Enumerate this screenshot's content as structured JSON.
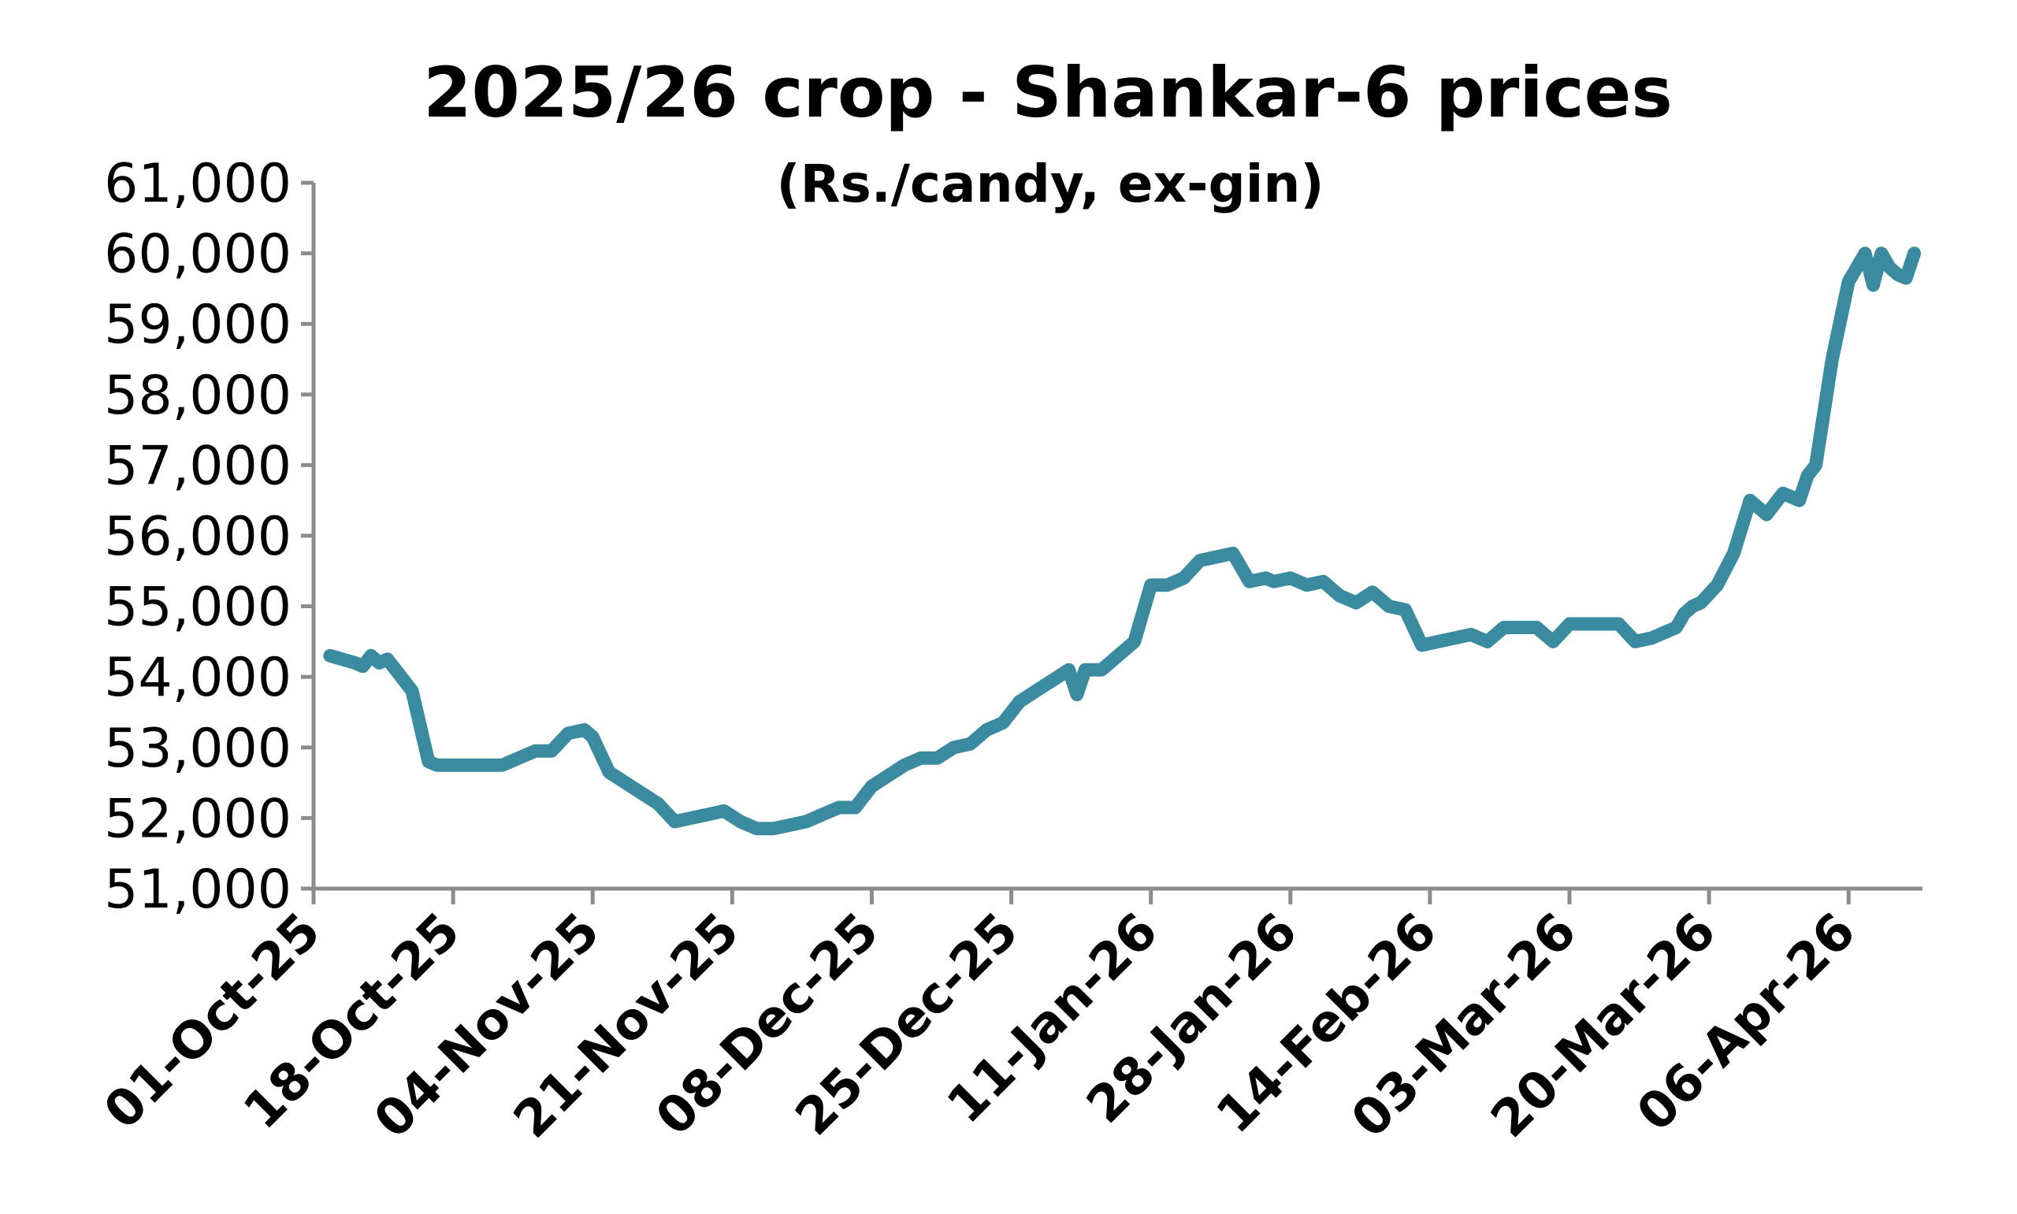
{
  "chart_data": {
    "type": "line",
    "title": "2025/26 crop - Shankar-6 prices",
    "subtitle": "(Rs./candy, ex-gin)",
    "xlabel": "",
    "ylabel": "",
    "ylim": [
      51000,
      61000
    ],
    "y_ticks": [
      "51,000",
      "52,000",
      "53,000",
      "54,000",
      "55,000",
      "56,000",
      "57,000",
      "58,000",
      "59,000",
      "60,000",
      "61,000"
    ],
    "x_ticks": [
      "01-Oct-25",
      "18-Oct-25",
      "04-Nov-25",
      "21-Nov-25",
      "08-Dec-25",
      "25-Dec-25",
      "11-Jan-26",
      "28-Jan-26",
      "14-Feb-26",
      "03-Mar-26",
      "20-Mar-26",
      "06-Apr-26"
    ],
    "x_range": [
      "2025-10-01",
      "2026-04-15"
    ],
    "grid": false,
    "legend": "none",
    "colors": {
      "line": "#3a8ba0",
      "axis": "#8c8c8c"
    },
    "series": [
      {
        "x": [
          "2025-10-03",
          "2025-10-06",
          "2025-10-07",
          "2025-10-08",
          "2025-10-09",
          "2025-10-10",
          "2025-10-11",
          "2025-10-13",
          "2025-10-14",
          "2025-10-15",
          "2025-10-16",
          "2025-10-18",
          "2025-10-20",
          "2025-10-22",
          "2025-10-24",
          "2025-10-26",
          "2025-10-28",
          "2025-10-30",
          "2025-11-01",
          "2025-11-03",
          "2025-11-04",
          "2025-11-05",
          "2025-11-06",
          "2025-11-08",
          "2025-11-10",
          "2025-11-12",
          "2025-11-14",
          "2025-11-16",
          "2025-11-18",
          "2025-11-20",
          "2025-11-22",
          "2025-11-24",
          "2025-11-26",
          "2025-11-28",
          "2025-11-30",
          "2025-12-02",
          "2025-12-04",
          "2025-12-06",
          "2025-12-08",
          "2025-12-10",
          "2025-12-12",
          "2025-12-14",
          "2025-12-16",
          "2025-12-18",
          "2025-12-20",
          "2025-12-22",
          "2025-12-24",
          "2025-12-26",
          "2025-12-28",
          "2025-12-30",
          "2026-01-01",
          "2026-01-02",
          "2026-01-03",
          "2026-01-05",
          "2026-01-07",
          "2026-01-09",
          "2026-01-11",
          "2026-01-13",
          "2026-01-15",
          "2026-01-17",
          "2026-01-19",
          "2026-01-21",
          "2026-01-23",
          "2026-01-25",
          "2026-01-26",
          "2026-01-28",
          "2026-01-30",
          "2026-02-01",
          "2026-02-03",
          "2026-02-05",
          "2026-02-07",
          "2026-02-09",
          "2026-02-11",
          "2026-02-13",
          "2026-02-15",
          "2026-02-17",
          "2026-02-19",
          "2026-02-21",
          "2026-02-23",
          "2026-02-25",
          "2026-02-27",
          "2026-03-01",
          "2026-03-03",
          "2026-03-05",
          "2026-03-07",
          "2026-03-09",
          "2026-03-11",
          "2026-03-13",
          "2026-03-15",
          "2026-03-16",
          "2026-03-17",
          "2026-03-18",
          "2026-03-19",
          "2026-03-21",
          "2026-03-23",
          "2026-03-25",
          "2026-03-27",
          "2026-03-29",
          "2026-03-31",
          "2026-04-01",
          "2026-04-02",
          "2026-04-04",
          "2026-04-06",
          "2026-04-07",
          "2026-04-08",
          "2026-04-09",
          "2026-04-10",
          "2026-04-11",
          "2026-04-12",
          "2026-04-13",
          "2026-04-14"
        ],
        "values": [
          54300,
          54200,
          54150,
          54300,
          54200,
          54250,
          54100,
          53800,
          53300,
          52800,
          52750,
          52750,
          52750,
          52750,
          52750,
          52850,
          52950,
          52950,
          53200,
          53250,
          53150,
          52900,
          52650,
          52500,
          52350,
          52200,
          51950,
          52000,
          52050,
          52100,
          51950,
          51850,
          51850,
          51900,
          51950,
          52050,
          52150,
          52150,
          52450,
          52600,
          52750,
          52850,
          52850,
          53000,
          53050,
          53250,
          53350,
          53650,
          53800,
          53950,
          54100,
          53750,
          54100,
          54100,
          54300,
          54500,
          55300,
          55300,
          55400,
          55650,
          55700,
          55750,
          55350,
          55400,
          55350,
          55400,
          55300,
          55350,
          55150,
          55050,
          55200,
          55000,
          54950,
          54450,
          54500,
          54550,
          54600,
          54500,
          54700,
          54700,
          54700,
          54500,
          54750,
          54750,
          54750,
          54750,
          54500,
          54550,
          54650,
          54700,
          54900,
          55000,
          55050,
          55300,
          55750,
          56500,
          56300,
          56600,
          56500,
          56850,
          57000,
          58500,
          59600,
          59800,
          60000,
          59550,
          60000,
          59800,
          59700,
          59650,
          60000
        ]
      }
    ]
  }
}
